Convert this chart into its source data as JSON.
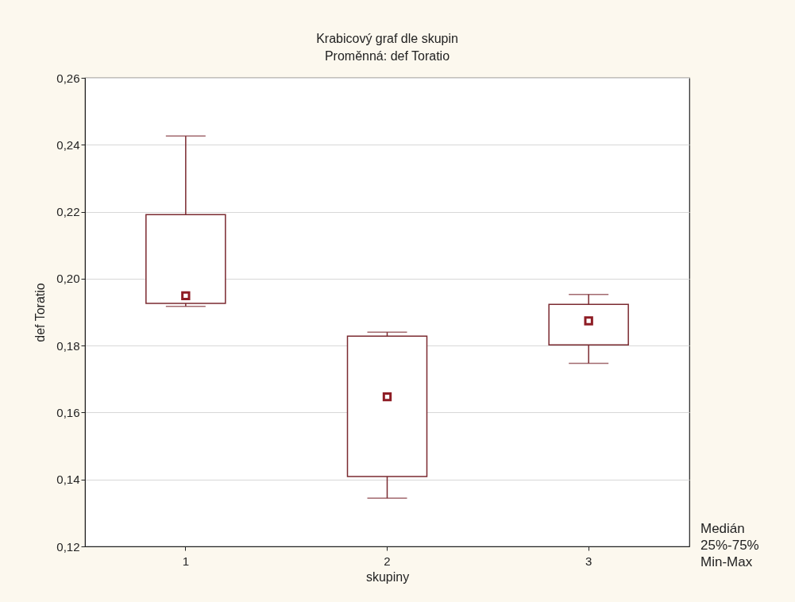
{
  "chart_data": {
    "type": "box",
    "title": "Krabicový graf dle skupin",
    "subtitle": "Proměnná: def Toratio",
    "xlabel": "skupiny",
    "ylabel": "def Toratio",
    "categories": [
      "1",
      "2",
      "3"
    ],
    "series": [
      {
        "color": "#7b2a30",
        "boxes": [
          {
            "low": 0.1917,
            "q1": 0.1926,
            "median": 0.1949,
            "q3": 0.2191,
            "high": 0.2426
          },
          {
            "low": 0.1344,
            "q1": 0.1409,
            "median": 0.1647,
            "q3": 0.1828,
            "high": 0.184
          },
          {
            "low": 0.1747,
            "q1": 0.1802,
            "median": 0.1874,
            "q3": 0.1923,
            "high": 0.1953
          }
        ]
      }
    ],
    "ylim": [
      0.12,
      0.26
    ],
    "yticks": [
      {
        "value": 0.12,
        "label": "0,12"
      },
      {
        "value": 0.14,
        "label": "0,14"
      },
      {
        "value": 0.16,
        "label": "0,16"
      },
      {
        "value": 0.18,
        "label": "0,18"
      },
      {
        "value": 0.2,
        "label": "0,20"
      },
      {
        "value": 0.22,
        "label": "0,22"
      },
      {
        "value": 0.24,
        "label": "0,24"
      },
      {
        "value": 0.26,
        "label": "0,26"
      }
    ],
    "grid": "y",
    "marker": "square",
    "annotations": [
      "Medián",
      "25%-75%",
      "Min-Max"
    ]
  }
}
